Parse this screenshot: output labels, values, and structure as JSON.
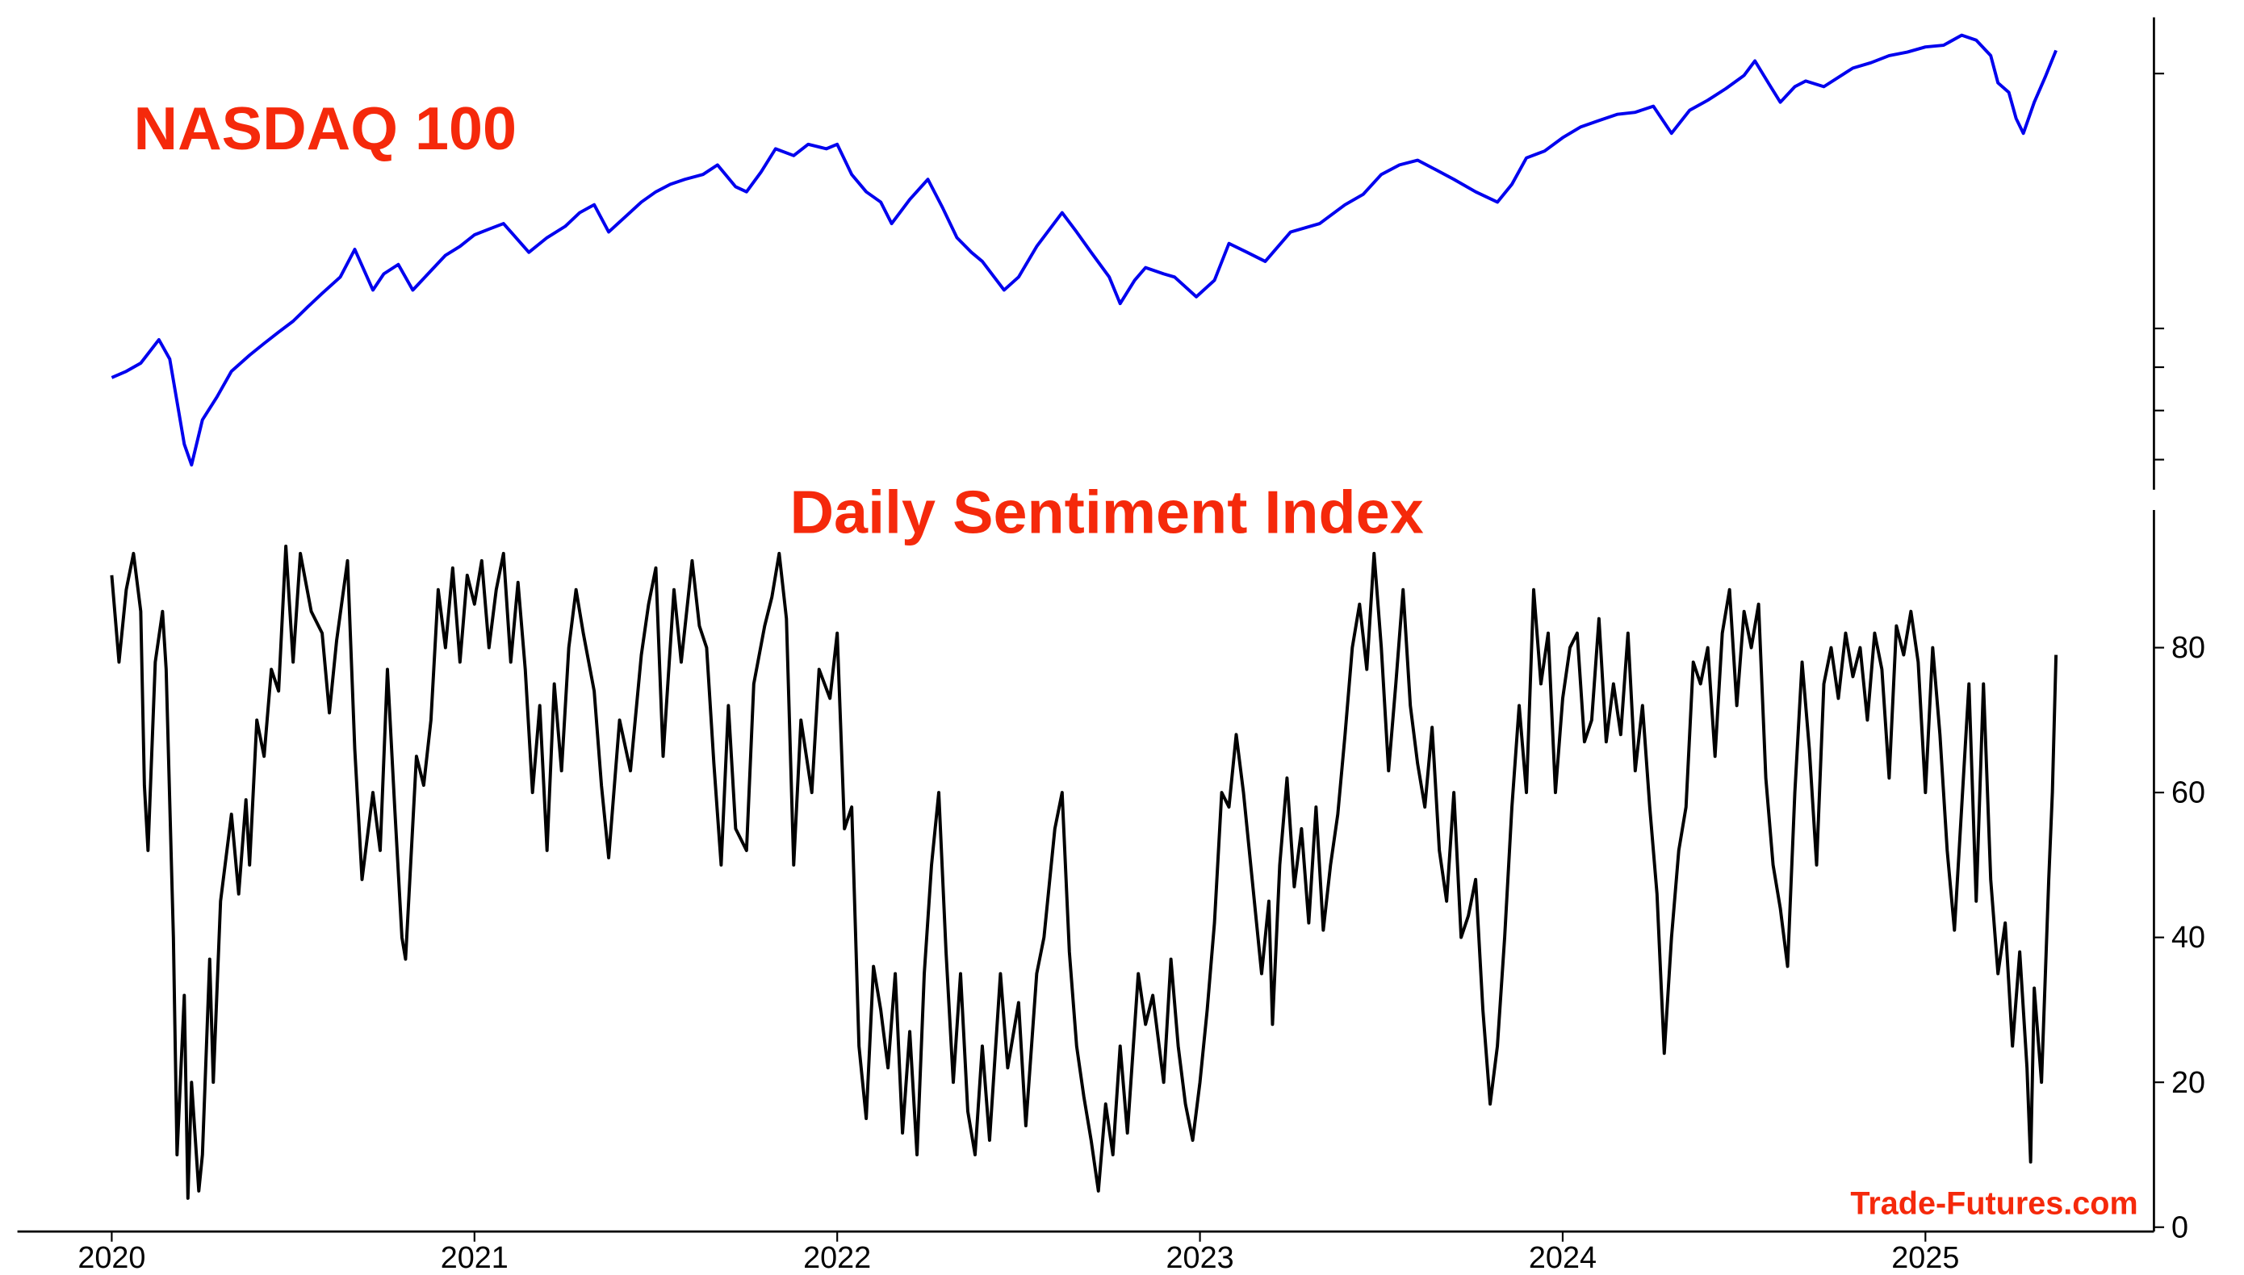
{
  "chart_data": [
    {
      "type": "line",
      "title": "NASDAQ 100",
      "yscale": "log",
      "xlim": [
        2019.74,
        2025.63
      ],
      "ylim": [
        6450,
        23300
      ],
      "yticks": [
        7000,
        8000,
        9000,
        10000,
        20000
      ],
      "series": [
        {
          "color": "#0000ee",
          "x": [
            2020.0,
            2020.04,
            2020.08,
            2020.13,
            2020.16,
            2020.2,
            2020.22,
            2020.25,
            2020.29,
            2020.33,
            2020.38,
            2020.42,
            2020.46,
            2020.5,
            2020.54,
            2020.58,
            2020.63,
            2020.67,
            2020.72,
            2020.75,
            2020.79,
            2020.83,
            2020.88,
            2020.92,
            2020.96,
            2021.0,
            2021.04,
            2021.08,
            2021.15,
            2021.2,
            2021.25,
            2021.29,
            2021.33,
            2021.37,
            2021.42,
            2021.46,
            2021.5,
            2021.54,
            2021.58,
            2021.63,
            2021.67,
            2021.72,
            2021.75,
            2021.79,
            2021.83,
            2021.88,
            2021.92,
            2021.97,
            2022.0,
            2022.04,
            2022.08,
            2022.12,
            2022.15,
            2022.2,
            2022.25,
            2022.29,
            2022.33,
            2022.37,
            2022.4,
            2022.46,
            2022.5,
            2022.55,
            2022.62,
            2022.66,
            2022.7,
            2022.75,
            2022.78,
            2022.82,
            2022.85,
            2022.9,
            2022.93,
            2022.99,
            2023.04,
            2023.08,
            2023.13,
            2023.18,
            2023.25,
            2023.33,
            2023.4,
            2023.45,
            2023.5,
            2023.55,
            2023.6,
            2023.65,
            2023.7,
            2023.76,
            2023.82,
            2023.86,
            2023.9,
            2023.95,
            2024.0,
            2024.05,
            2024.1,
            2024.15,
            2024.2,
            2024.25,
            2024.3,
            2024.35,
            2024.4,
            2024.45,
            2024.5,
            2024.53,
            2024.57,
            2024.6,
            2024.64,
            2024.67,
            2024.72,
            2024.8,
            2024.85,
            2024.9,
            2024.95,
            2025.0,
            2025.05,
            2025.1,
            2025.14,
            2025.18,
            2025.2,
            2025.23,
            2025.25,
            2025.27,
            2025.3,
            2025.33,
            2025.36
          ],
          "values": [
            8750,
            8900,
            9100,
            9700,
            9200,
            7300,
            6900,
            7800,
            8300,
            8900,
            9300,
            9600,
            9900,
            10200,
            10600,
            11000,
            11500,
            12400,
            11100,
            11600,
            11900,
            11100,
            11700,
            12200,
            12500,
            12900,
            13100,
            13300,
            12300,
            12800,
            13200,
            13700,
            14000,
            13000,
            13600,
            14100,
            14500,
            14800,
            15000,
            15200,
            15600,
            14700,
            14500,
            15300,
            16300,
            16000,
            16500,
            16300,
            16500,
            15200,
            14500,
            14100,
            13300,
            14200,
            15000,
            13900,
            12800,
            12300,
            12000,
            11100,
            11500,
            12500,
            13700,
            13000,
            12300,
            11500,
            10700,
            11400,
            11800,
            11600,
            11500,
            10900,
            11400,
            12600,
            12300,
            12000,
            13000,
            13300,
            14000,
            14400,
            15200,
            15600,
            15800,
            15400,
            15000,
            14500,
            14100,
            14800,
            15900,
            16200,
            16800,
            17300,
            17600,
            17900,
            18000,
            18300,
            17000,
            18100,
            18600,
            19200,
            19900,
            20700,
            19400,
            18500,
            19300,
            19600,
            19300,
            20300,
            20600,
            21000,
            21200,
            21500,
            21600,
            22200,
            21900,
            21000,
            19500,
            19000,
            17700,
            17000,
            18500,
            19800,
            21300
          ]
        }
      ]
    },
    {
      "type": "line",
      "title": "Daily Sentiment Index",
      "annotation": "Trade-Futures.com",
      "xlim": [
        2019.74,
        2025.63
      ],
      "ylim": [
        -0.6,
        99
      ],
      "xticks": [
        2020,
        2021,
        2022,
        2023,
        2024,
        2025
      ],
      "yticks": [
        0,
        20,
        40,
        60,
        80
      ],
      "series": [
        {
          "color": "#000000",
          "x": [
            2020.0,
            2020.02,
            2020.04,
            2020.06,
            2020.08,
            2020.09,
            2020.1,
            2020.12,
            2020.14,
            2020.15,
            2020.17,
            2020.18,
            2020.2,
            2020.21,
            2020.22,
            2020.24,
            2020.25,
            2020.27,
            2020.28,
            2020.3,
            2020.33,
            2020.35,
            2020.37,
            2020.38,
            2020.4,
            2020.42,
            2020.44,
            2020.46,
            2020.48,
            2020.5,
            2020.52,
            2020.55,
            2020.58,
            2020.6,
            2020.62,
            2020.65,
            2020.67,
            2020.69,
            2020.72,
            2020.74,
            2020.76,
            2020.78,
            2020.8,
            2020.81,
            2020.84,
            2020.86,
            2020.88,
            2020.9,
            2020.92,
            2020.94,
            2020.96,
            2020.98,
            2021.0,
            2021.02,
            2021.04,
            2021.06,
            2021.08,
            2021.1,
            2021.12,
            2021.14,
            2021.16,
            2021.18,
            2021.2,
            2021.22,
            2021.24,
            2021.26,
            2021.28,
            2021.3,
            2021.33,
            2021.35,
            2021.37,
            2021.4,
            2021.43,
            2021.46,
            2021.48,
            2021.5,
            2021.52,
            2021.55,
            2021.57,
            2021.6,
            2021.62,
            2021.64,
            2021.66,
            2021.68,
            2021.7,
            2021.72,
            2021.75,
            2021.77,
            2021.8,
            2021.82,
            2021.84,
            2021.86,
            2021.88,
            2021.9,
            2021.93,
            2021.95,
            2021.98,
            2022.0,
            2022.02,
            2022.04,
            2022.06,
            2022.08,
            2022.1,
            2022.12,
            2022.14,
            2022.16,
            2022.18,
            2022.2,
            2022.22,
            2022.24,
            2022.26,
            2022.28,
            2022.3,
            2022.32,
            2022.34,
            2022.36,
            2022.38,
            2022.4,
            2022.42,
            2022.45,
            2022.47,
            2022.5,
            2022.52,
            2022.55,
            2022.57,
            2022.6,
            2022.62,
            2022.64,
            2022.66,
            2022.68,
            2022.7,
            2022.72,
            2022.74,
            2022.76,
            2022.78,
            2022.8,
            2022.83,
            2022.85,
            2022.87,
            2022.9,
            2022.92,
            2022.94,
            2022.96,
            2022.98,
            2023.0,
            2023.02,
            2023.04,
            2023.06,
            2023.08,
            2023.1,
            2023.12,
            2023.14,
            2023.17,
            2023.19,
            2023.2,
            2023.22,
            2023.24,
            2023.26,
            2023.28,
            2023.3,
            2023.32,
            2023.34,
            2023.36,
            2023.38,
            2023.4,
            2023.42,
            2023.44,
            2023.46,
            2023.48,
            2023.5,
            2023.52,
            2023.54,
            2023.56,
            2023.58,
            2023.6,
            2023.62,
            2023.64,
            2023.66,
            2023.68,
            2023.7,
            2023.72,
            2023.74,
            2023.76,
            2023.78,
            2023.8,
            2023.82,
            2023.84,
            2023.86,
            2023.88,
            2023.9,
            2023.92,
            2023.94,
            2023.96,
            2023.98,
            2024.0,
            2024.02,
            2024.04,
            2024.06,
            2024.08,
            2024.1,
            2024.12,
            2024.14,
            2024.16,
            2024.18,
            2024.2,
            2024.22,
            2024.24,
            2024.26,
            2024.28,
            2024.3,
            2024.32,
            2024.34,
            2024.36,
            2024.38,
            2024.4,
            2024.42,
            2024.44,
            2024.46,
            2024.48,
            2024.5,
            2024.52,
            2024.54,
            2024.56,
            2024.58,
            2024.6,
            2024.62,
            2024.64,
            2024.66,
            2024.68,
            2024.7,
            2024.72,
            2024.74,
            2024.76,
            2024.78,
            2024.8,
            2024.82,
            2024.84,
            2024.86,
            2024.88,
            2024.9,
            2024.92,
            2024.94,
            2024.96,
            2024.98,
            2025.0,
            2025.02,
            2025.04,
            2025.06,
            2025.08,
            2025.1,
            2025.12,
            2025.14,
            2025.16,
            2025.18,
            2025.2,
            2025.22,
            2025.24,
            2025.26,
            2025.28,
            2025.29,
            2025.3,
            2025.32,
            2025.34,
            2025.35,
            2025.36
          ],
          "values": [
            90,
            78,
            88,
            93,
            85,
            61,
            52,
            78,
            85,
            77,
            40,
            10,
            32,
            4,
            20,
            5,
            10,
            37,
            20,
            45,
            57,
            46,
            59,
            50,
            70,
            65,
            77,
            74,
            94,
            78,
            93,
            85,
            82,
            71,
            81,
            92,
            66,
            48,
            60,
            52,
            77,
            58,
            40,
            37,
            65,
            61,
            70,
            88,
            80,
            91,
            78,
            90,
            86,
            92,
            80,
            88,
            93,
            78,
            89,
            77,
            60,
            72,
            52,
            75,
            63,
            80,
            88,
            82,
            74,
            61,
            51,
            70,
            63,
            79,
            86,
            91,
            65,
            88,
            78,
            92,
            83,
            80,
            64,
            50,
            72,
            55,
            52,
            75,
            83,
            87,
            93,
            84,
            50,
            70,
            60,
            77,
            73,
            82,
            55,
            58,
            25,
            15,
            36,
            30,
            22,
            35,
            13,
            27,
            10,
            35,
            50,
            60,
            38,
            20,
            35,
            16,
            10,
            25,
            12,
            35,
            22,
            31,
            14,
            35,
            40,
            55,
            60,
            38,
            25,
            18,
            12,
            5,
            17,
            10,
            25,
            13,
            35,
            28,
            32,
            20,
            37,
            25,
            17,
            12,
            20,
            30,
            42,
            60,
            58,
            68,
            60,
            50,
            35,
            45,
            28,
            50,
            62,
            47,
            55,
            42,
            58,
            41,
            50,
            57,
            68,
            80,
            86,
            77,
            93,
            80,
            63,
            75,
            88,
            72,
            64,
            58,
            69,
            52,
            45,
            60,
            40,
            43,
            48,
            30,
            17,
            25,
            40,
            58,
            72,
            60,
            88,
            75,
            82,
            60,
            73,
            80,
            82,
            67,
            70,
            84,
            67,
            75,
            68,
            82,
            63,
            72,
            58,
            46,
            24,
            40,
            52,
            58,
            78,
            75,
            80,
            65,
            82,
            88,
            72,
            85,
            80,
            86,
            62,
            50,
            44,
            36,
            60,
            78,
            66,
            50,
            75,
            80,
            73,
            82,
            76,
            80,
            70,
            82,
            77,
            62,
            83,
            79,
            85,
            78,
            60,
            80,
            68,
            52,
            41,
            58,
            75,
            45,
            75,
            48,
            35,
            42,
            25,
            38,
            22,
            9,
            33,
            20,
            48,
            60,
            79
          ]
        }
      ]
    }
  ]
}
